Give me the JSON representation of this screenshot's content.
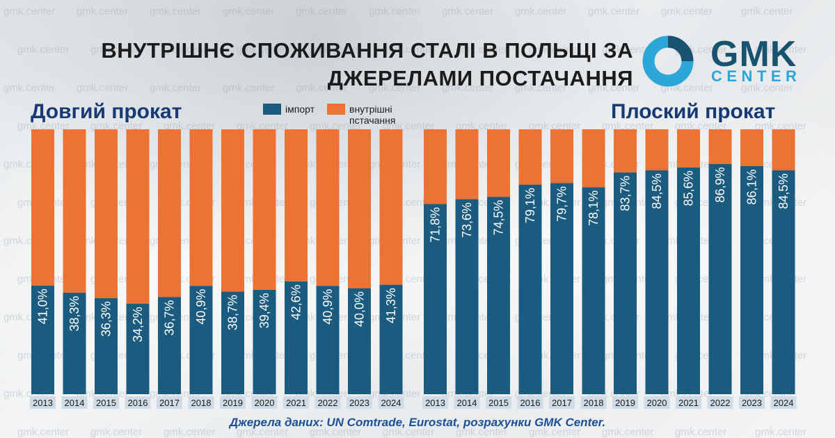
{
  "header": {
    "title_line1": "Внутрішнє споживання сталі в Польщі за",
    "title_line2": "джерелами постачання"
  },
  "logo": {
    "line1": "GMK",
    "line2": "CENTER",
    "colors": {
      "dark": "#17536f",
      "light": "#2aa6d8"
    }
  },
  "watermark_text": "gmk.center",
  "legend": [
    {
      "label": "імпорт",
      "color": "#1b5b80"
    },
    {
      "label_line1": "внутрішні",
      "label_line2": "пстачання",
      "color": "#ec7333"
    }
  ],
  "source": "Джерела даних: UN Comtrade, Eurostat, розрахунки GMK Center.",
  "chart_data": [
    {
      "type": "bar",
      "stacked": true,
      "title": "Довгий прокат",
      "categories": [
        "2013",
        "2014",
        "2015",
        "2016",
        "2017",
        "2018",
        "2019",
        "2020",
        "2021",
        "2022",
        "2023",
        "2024"
      ],
      "ylim": [
        0,
        100
      ],
      "series": [
        {
          "name": "імпорт",
          "color": "#1b5b80",
          "values": [
            41.0,
            38.3,
            36.3,
            34.2,
            36.7,
            40.9,
            38.7,
            39.4,
            42.6,
            40.9,
            40.0,
            41.3
          ],
          "labels": [
            "41,0%",
            "38,3%",
            "36,3%",
            "34,2%",
            "36,7%",
            "40,9%",
            "38,7%",
            "39,4%",
            "42,6%",
            "40,9%",
            "40,0%",
            "41,3%"
          ]
        },
        {
          "name": "внутрішні пстачання",
          "color": "#ec7333",
          "values": [
            59.0,
            61.7,
            63.7,
            65.8,
            63.3,
            59.1,
            61.3,
            60.6,
            57.4,
            59.1,
            60.0,
            58.7
          ]
        }
      ]
    },
    {
      "type": "bar",
      "stacked": true,
      "title": "Плоский прокат",
      "categories": [
        "2013",
        "2014",
        "2015",
        "2016",
        "2017",
        "2018",
        "2019",
        "2020",
        "2021",
        "2022",
        "2023",
        "2024"
      ],
      "ylim": [
        0,
        100
      ],
      "series": [
        {
          "name": "імпорт",
          "color": "#1b5b80",
          "values": [
            71.8,
            73.6,
            74.5,
            79.1,
            79.7,
            78.1,
            83.7,
            84.5,
            85.6,
            86.9,
            86.1,
            84.5
          ],
          "labels": [
            "71,8%",
            "73,6%",
            "74,5%",
            "79,1%",
            "79,7%",
            "78,1%",
            "83,7%",
            "84,5%",
            "85,6%",
            "86,9%",
            "86,1%",
            "84,5%"
          ]
        },
        {
          "name": "внутрішні пстачання",
          "color": "#ec7333",
          "values": [
            28.2,
            26.4,
            25.5,
            20.9,
            20.3,
            21.9,
            16.3,
            15.5,
            14.4,
            13.1,
            13.9,
            15.5
          ]
        }
      ]
    }
  ]
}
